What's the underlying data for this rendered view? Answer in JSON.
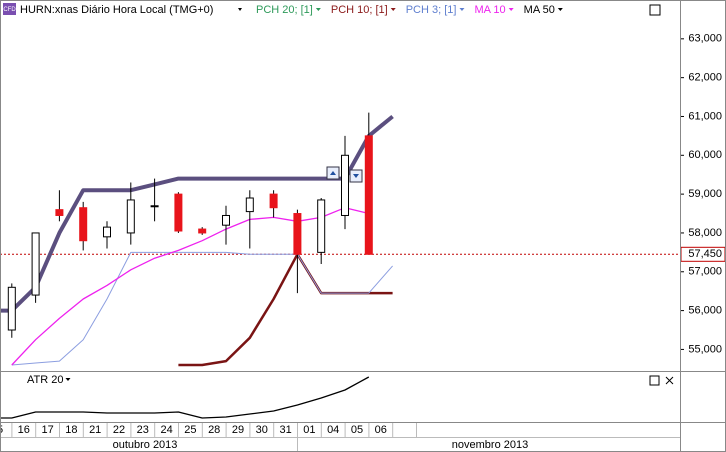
{
  "header": {
    "icon": "CFD"
  },
  "chart_data": [
    {
      "type": "candlestick",
      "title": "HURN:xnas Diário Hora Local (TMG+0)",
      "categories": [
        "5",
        "16",
        "17",
        "18",
        "21",
        "22",
        "23",
        "24",
        "25",
        "28",
        "29",
        "30",
        "31",
        "01",
        "04",
        "05",
        "06",
        null
      ],
      "open": [
        null,
        55500,
        56400,
        58600,
        58650,
        57900,
        58000,
        58700,
        59000,
        58100,
        58200,
        58550,
        59000,
        58500,
        57500,
        58450,
        60500,
        null
      ],
      "high": [
        null,
        56700,
        58000,
        59100,
        58800,
        58300,
        59300,
        59400,
        59050,
        58150,
        58700,
        59100,
        59100,
        58600,
        58900,
        60500,
        61100,
        null
      ],
      "low": [
        null,
        55300,
        56200,
        58300,
        57550,
        57600,
        57700,
        58300,
        58000,
        57950,
        57700,
        57600,
        58400,
        56450,
        57200,
        58100,
        57450,
        null
      ],
      "close": [
        null,
        56600,
        58000,
        58450,
        57800,
        58150,
        58850,
        58700,
        58050,
        58000,
        58450,
        58900,
        58650,
        57450,
        58850,
        60000,
        57450,
        null
      ],
      "up_color": "#ffffff",
      "down_color": "#e8141b",
      "series": [
        {
          "name": "PCH 20; [1]",
          "color": "#5b4f7f",
          "legend_color": "#2e9a5a",
          "values": [
            56000,
            56000,
            56600,
            58000,
            59100,
            59100,
            59100,
            59250,
            59400,
            59400,
            59400,
            59400,
            59400,
            59400,
            59400,
            59400,
            60500,
            61000
          ]
        },
        {
          "name": "PCH 10; [1]",
          "color": "#7a1414",
          "legend_color": "#8b1a1a",
          "values": [
            null,
            null,
            null,
            null,
            null,
            null,
            null,
            null,
            54600,
            54600,
            54700,
            55300,
            56300,
            57450,
            56450,
            56450,
            56450,
            56450
          ]
        },
        {
          "name": "PCH 3; [1]",
          "color": "#8c9ee0",
          "legend_color": "#5f7fcf",
          "values": [
            null,
            54600,
            54650,
            54700,
            55250,
            56300,
            57500,
            57500,
            57500,
            57500,
            57500,
            57450,
            57450,
            57450,
            56450,
            56450,
            56450,
            57150
          ]
        },
        {
          "name": "MA 10",
          "color": "#ee22ee",
          "legend_color": "#ee22ee",
          "values": [
            null,
            54600,
            55250,
            55800,
            56300,
            56650,
            57050,
            57350,
            57550,
            57800,
            58100,
            58350,
            58400,
            58300,
            58400,
            58650,
            58500,
            null
          ]
        },
        {
          "name": "MA 50",
          "color": "#000000",
          "legend_color": "#000000",
          "values": [
            null,
            null,
            null,
            null,
            null,
            null,
            null,
            null,
            null,
            null,
            null,
            null,
            null,
            null,
            null,
            null,
            null,
            null
          ]
        }
      ],
      "ylim": [
        54470,
        64000
      ],
      "yticks": [
        {
          "value": 55000,
          "label": "55,000"
        },
        {
          "value": 56000,
          "label": "56,000"
        },
        {
          "value": 57000,
          "label": "57,000"
        },
        {
          "value": 58000,
          "label": "58,000"
        },
        {
          "value": 59000,
          "label": "59,000"
        },
        {
          "value": 60000,
          "label": "60,000"
        },
        {
          "value": 61000,
          "label": "61,000"
        },
        {
          "value": 62000,
          "label": "62,000"
        },
        {
          "value": 63000,
          "label": "63,000"
        }
      ],
      "reference_line": {
        "value": 57450,
        "label": "57,450",
        "color": "#c00000"
      },
      "months": [
        "outubro 2013",
        "novembro 2013"
      ]
    },
    {
      "type": "line",
      "series": [
        {
          "name": "ATR 20",
          "color": "#000000",
          "values": [
            356,
            356,
            440,
            440,
            440,
            426,
            426,
            426,
            440,
            356,
            370,
            412,
            454,
            538,
            636,
            748,
            930,
            null
          ]
        }
      ],
      "ylim": [
        300,
        1000
      ]
    }
  ]
}
